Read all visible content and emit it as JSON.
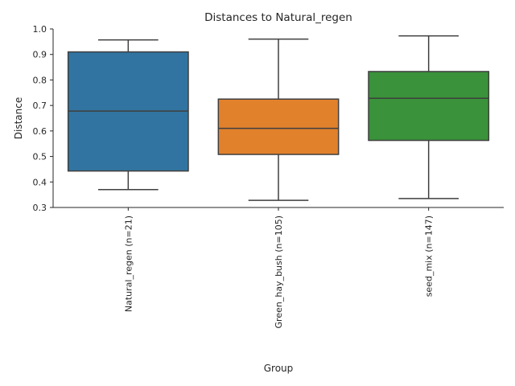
{
  "chart_data": {
    "type": "box",
    "title": "Distances to Natural_regen",
    "xlabel": "Group",
    "ylabel": "Distance",
    "ylim": [
      0.3,
      1.0
    ],
    "yticks": [
      0.3,
      0.4,
      0.5,
      0.6,
      0.7,
      0.8,
      0.9,
      1.0
    ],
    "ytick_labels": [
      "0.3",
      "0.4",
      "0.5",
      "0.6",
      "0.7",
      "0.8",
      "0.9",
      "1.0"
    ],
    "grid": false,
    "boxes": [
      {
        "category": "Natural_regen (n=21)",
        "color": "#3274a1",
        "whisker_low": 0.37,
        "q1": 0.443,
        "median": 0.678,
        "q3": 0.91,
        "whisker_high": 0.957
      },
      {
        "category": "Green_hay_bush (n=105)",
        "color": "#e1812c",
        "whisker_low": 0.328,
        "q1": 0.508,
        "median": 0.61,
        "q3": 0.725,
        "whisker_high": 0.96
      },
      {
        "category": "seed_mix (n=147)",
        "color": "#3a923a",
        "whisker_low": 0.335,
        "q1": 0.563,
        "median": 0.728,
        "q3": 0.833,
        "whisker_high": 0.973
      }
    ]
  }
}
